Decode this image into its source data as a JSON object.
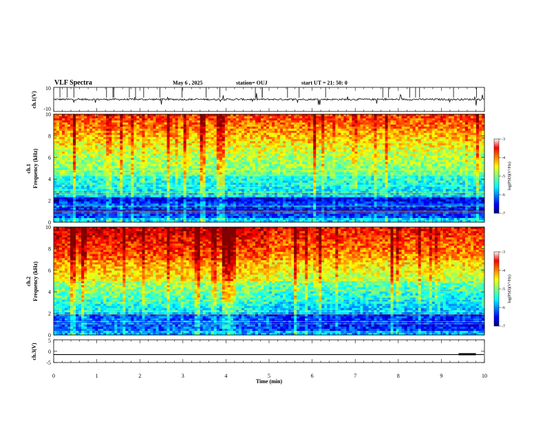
{
  "header": {
    "title": "VLF Spectra",
    "date": "May 6  , 2025",
    "station": "station= OUJ",
    "start": "start  UT  =   21: 50: 0"
  },
  "chart_data": [
    {
      "type": "line",
      "panel": "ch1-waveform",
      "ylabel": "ch.1(V)",
      "ylim": [
        -10,
        10
      ],
      "y_tick_labels": [
        "10",
        "-10"
      ],
      "xlim": [
        0,
        10
      ],
      "baseline": 0,
      "grid": false
    },
    {
      "type": "heatmap",
      "panel": "ch1-spectrogram",
      "ylabel": "ch.1\nFrequency  (kHz)",
      "ylim": [
        0,
        10
      ],
      "y_ticks": [
        0,
        2,
        4,
        6,
        8,
        10
      ],
      "xlim": [
        0,
        10
      ],
      "colorbar": {
        "label": "log(PSD)(V²/Hz)",
        "range": [
          -7,
          -3
        ],
        "ticks": [
          -3,
          -4,
          -5,
          -6,
          -7
        ]
      },
      "bands_kHz": [
        {
          "from": 0,
          "to": 2.3,
          "level": "low (-6.5)"
        },
        {
          "from": 2.3,
          "to": 4.5,
          "level": "-5.5"
        },
        {
          "from": 4.5,
          "to": 7,
          "level": "-5"
        },
        {
          "from": 7,
          "to": 10,
          "level": "-4"
        }
      ]
    },
    {
      "type": "heatmap",
      "panel": "ch2-spectrogram",
      "ylabel": "ch.2\nFrequency  (kHz)",
      "ylim": [
        0,
        10
      ],
      "y_ticks": [
        0,
        2,
        4,
        6,
        8,
        10
      ],
      "xlim": [
        0,
        10
      ],
      "colorbar": {
        "label": "log(PSD)(V²/Hz)",
        "range": [
          -7,
          -3
        ],
        "ticks": [
          -3,
          -4,
          -5,
          -6,
          -7
        ]
      },
      "bands_kHz": [
        {
          "from": 0,
          "to": 2,
          "level": "-6"
        },
        {
          "from": 2,
          "to": 5,
          "level": "-5"
        },
        {
          "from": 5,
          "to": 7,
          "level": "-4.5"
        },
        {
          "from": 7,
          "to": 10,
          "level": "-3.5"
        }
      ]
    },
    {
      "type": "line",
      "panel": "ch3-waveform",
      "ylabel": "ch.3(V)",
      "ylim": [
        -5,
        5
      ],
      "y_tick_labels": [
        "5",
        "0",
        "-5"
      ],
      "xlim": [
        0,
        10
      ],
      "level": -1.5,
      "xlabel": "Time  (min)",
      "x_ticks": [
        0,
        1,
        2,
        3,
        4,
        5,
        6,
        7,
        8,
        9,
        10
      ]
    }
  ],
  "colors": {
    "jet": [
      "#00007f",
      "#0000ff",
      "#0080ff",
      "#00ffff",
      "#80ff80",
      "#ffff00",
      "#ff8000",
      "#ff0000",
      "#7f0000"
    ]
  }
}
